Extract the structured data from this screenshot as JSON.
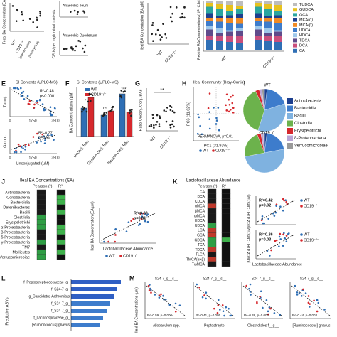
{
  "top": {
    "fecal_axis": "Fecal BA Concentration (EA;µM)",
    "wt": "WT",
    "cd19": "CD19⁻/⁻",
    "sub1": "(ciprofloxacin)",
    "sub2": "(tetracycline)",
    "cfu_axis": "CFUs/ per mg luminal contents",
    "ileum": "Anaerobic Ileum",
    "duodenum": "Anaerobic Duodenum",
    "ileal_axis": "Ileal BA Concentration (EA;µM)",
    "wt2": "WT",
    "cd19b": "CD19⁻/⁻",
    "rel_axis": "Relative BA Concentrations (UPLC-MS)",
    "wt3": "WT",
    "cd19c": "CD19⁻/⁻",
    "legend": [
      "TUDCA",
      "GUDCA",
      "GCA",
      "MCA(α)",
      "MCA(β)",
      "UDCA",
      "HDCA",
      "TDCA",
      "DCA",
      "CA"
    ]
  },
  "E": {
    "label": "E",
    "title": "SI Contents (UPLC-MS)",
    "yaxis1": "T-conj.",
    "r2a": "R²=0.48",
    "pa": "p<0.0001",
    "yaxis2": "G-conj.",
    "r2b": "R²=0.27",
    "pb": "p=0.02",
    "xt0": "0",
    "xt1": "1750",
    "xt2": "3500",
    "xt0b": "0",
    "xt1b": "1750",
    "xt2b": "3500",
    "xaxis": "Unconjugated (µM)"
  },
  "F": {
    "label": "F",
    "title": "SI Contents (UPLC-MS)",
    "wt": "WT",
    "cd19": "CD19⁻/⁻",
    "yaxis": "BA Concentrations (µM)",
    "groups": [
      "Unconj. BAs",
      "Glycine-conj. BAs",
      "Taurine-conj. BAs"
    ],
    "ns": "ns",
    "sig": "***",
    "sig2": "*"
  },
  "G": {
    "label": "G",
    "yaxis": "Ratio Unconj./Conj. BAs",
    "sig": "**",
    "wt": "WT",
    "cd19": "CD19⁻/⁻"
  },
  "H": {
    "label": "H",
    "title": "Ileal Community (Bray-Curtis)",
    "yaxis": "PC3 (11.62%)",
    "xaxis": "PC1 (31.93%)",
    "stat": "PERMANOVA, p=0.01",
    "wt": "WT",
    "cd19": "CD19⁻/⁻"
  },
  "I": {
    "label": "I",
    "wt": "WT",
    "cd19": "CD19⁻/⁻",
    "legend": [
      "Actinobacteria",
      "Bacteroidia",
      "Bacilli",
      "Clostridia",
      "Erysipelotrichi",
      "δ-Proteobacteria",
      "Verrucomicrobiae"
    ]
  },
  "J": {
    "label": "J",
    "title": "Ileal BA Concentrations (EA)",
    "pearson": "Pearson (r)",
    "r2": "R²",
    "rows": [
      "Actinobacteria",
      "Coriobacteria",
      "Bacteroidia",
      "Deferribacteres",
      "Bacilli",
      "Clostridia",
      "Erysipelotrichi",
      "α-Proteobacteria",
      "β-Proteobacteria",
      "δ-Proteobacteria",
      "γ-Proteobacteria",
      "TM7",
      "Mollicutes",
      "Verrucomicrobiae"
    ],
    "sr2": "R²=0.33",
    "sp": "p=0.01",
    "yaxis": "Ileal BA Concentration (EA;µM)",
    "xaxis": "Lactobacillaceae Abundance",
    "wt": "WT",
    "cd19": "CD19⁻/⁻"
  },
  "K": {
    "label": "K",
    "title": "Lactobacillaceae Abundance",
    "pearson": "Pearson (r)",
    "r2": "R²",
    "rows": [
      "CA",
      "DCA",
      "CDCA",
      "αMCA",
      "βMCA",
      "ωMCA",
      "HDCA",
      "UDCA",
      "LCA",
      "GCA",
      "GDCA",
      "TCA",
      "TDCA",
      "TLCA",
      "TMCA(α+β)",
      "TωMCA"
    ],
    "r2a": "R²=0.42",
    "pa": "p=0.02",
    "ya": "LCA (UPLC-MS;µM)",
    "r2b": "R²=0.36",
    "pb": "p=0.03",
    "yb": "β-MCA (UPLC-MS;µM)",
    "xaxis": "Lactobacillaceae Abundance",
    "wt": "WT",
    "cd19": "CD19⁻/⁻",
    "wt2": "WT",
    "cd19b": "CD19⁻/⁻"
  },
  "L": {
    "label": "L",
    "yaxis": "Predictive ASVs",
    "bars": [
      "f_Peptostreptococcaceae_g_",
      "f_S24-7_g_",
      "g_Candidatus Arthromitus",
      "f_S24-7_g_",
      "f_S24-7_g_",
      "f_Lachnospiraceae_g_",
      "[Ruminococcus] gnavus"
    ]
  },
  "M": {
    "label": "M",
    "yaxis": "Ileal BA Concentrations (µM)",
    "titles": [
      "S24-7_g__s__",
      "S24-7_g__s__",
      "S24-7_g__s__",
      "S24-7_g__s__"
    ],
    "xlabels": [
      "Allobaculum spp.",
      "Peptostrepto.",
      "Clostridiales f__g__",
      "[Ruminococcus] gnavus"
    ],
    "stats": [
      "R²=0.59, p=0.0004",
      "R²=0.41, p=0.005",
      "R²=0.38, p=0.006",
      "R²=0.44, p=0.003"
    ]
  }
}
